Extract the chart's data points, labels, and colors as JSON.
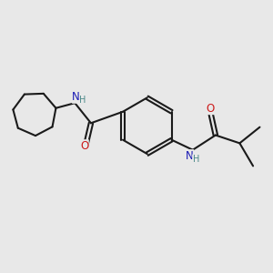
{
  "bg_color": "#e8e8e8",
  "bond_color": "#1a1a1a",
  "N_color": "#1a1ab4",
  "O_color": "#cc1a1a",
  "H_color": "#4a8888",
  "line_width": 1.5,
  "font_size_atom": 8.5,
  "font_size_H": 7.0,
  "xlim": [
    0,
    10
  ],
  "ylim": [
    0,
    10
  ]
}
